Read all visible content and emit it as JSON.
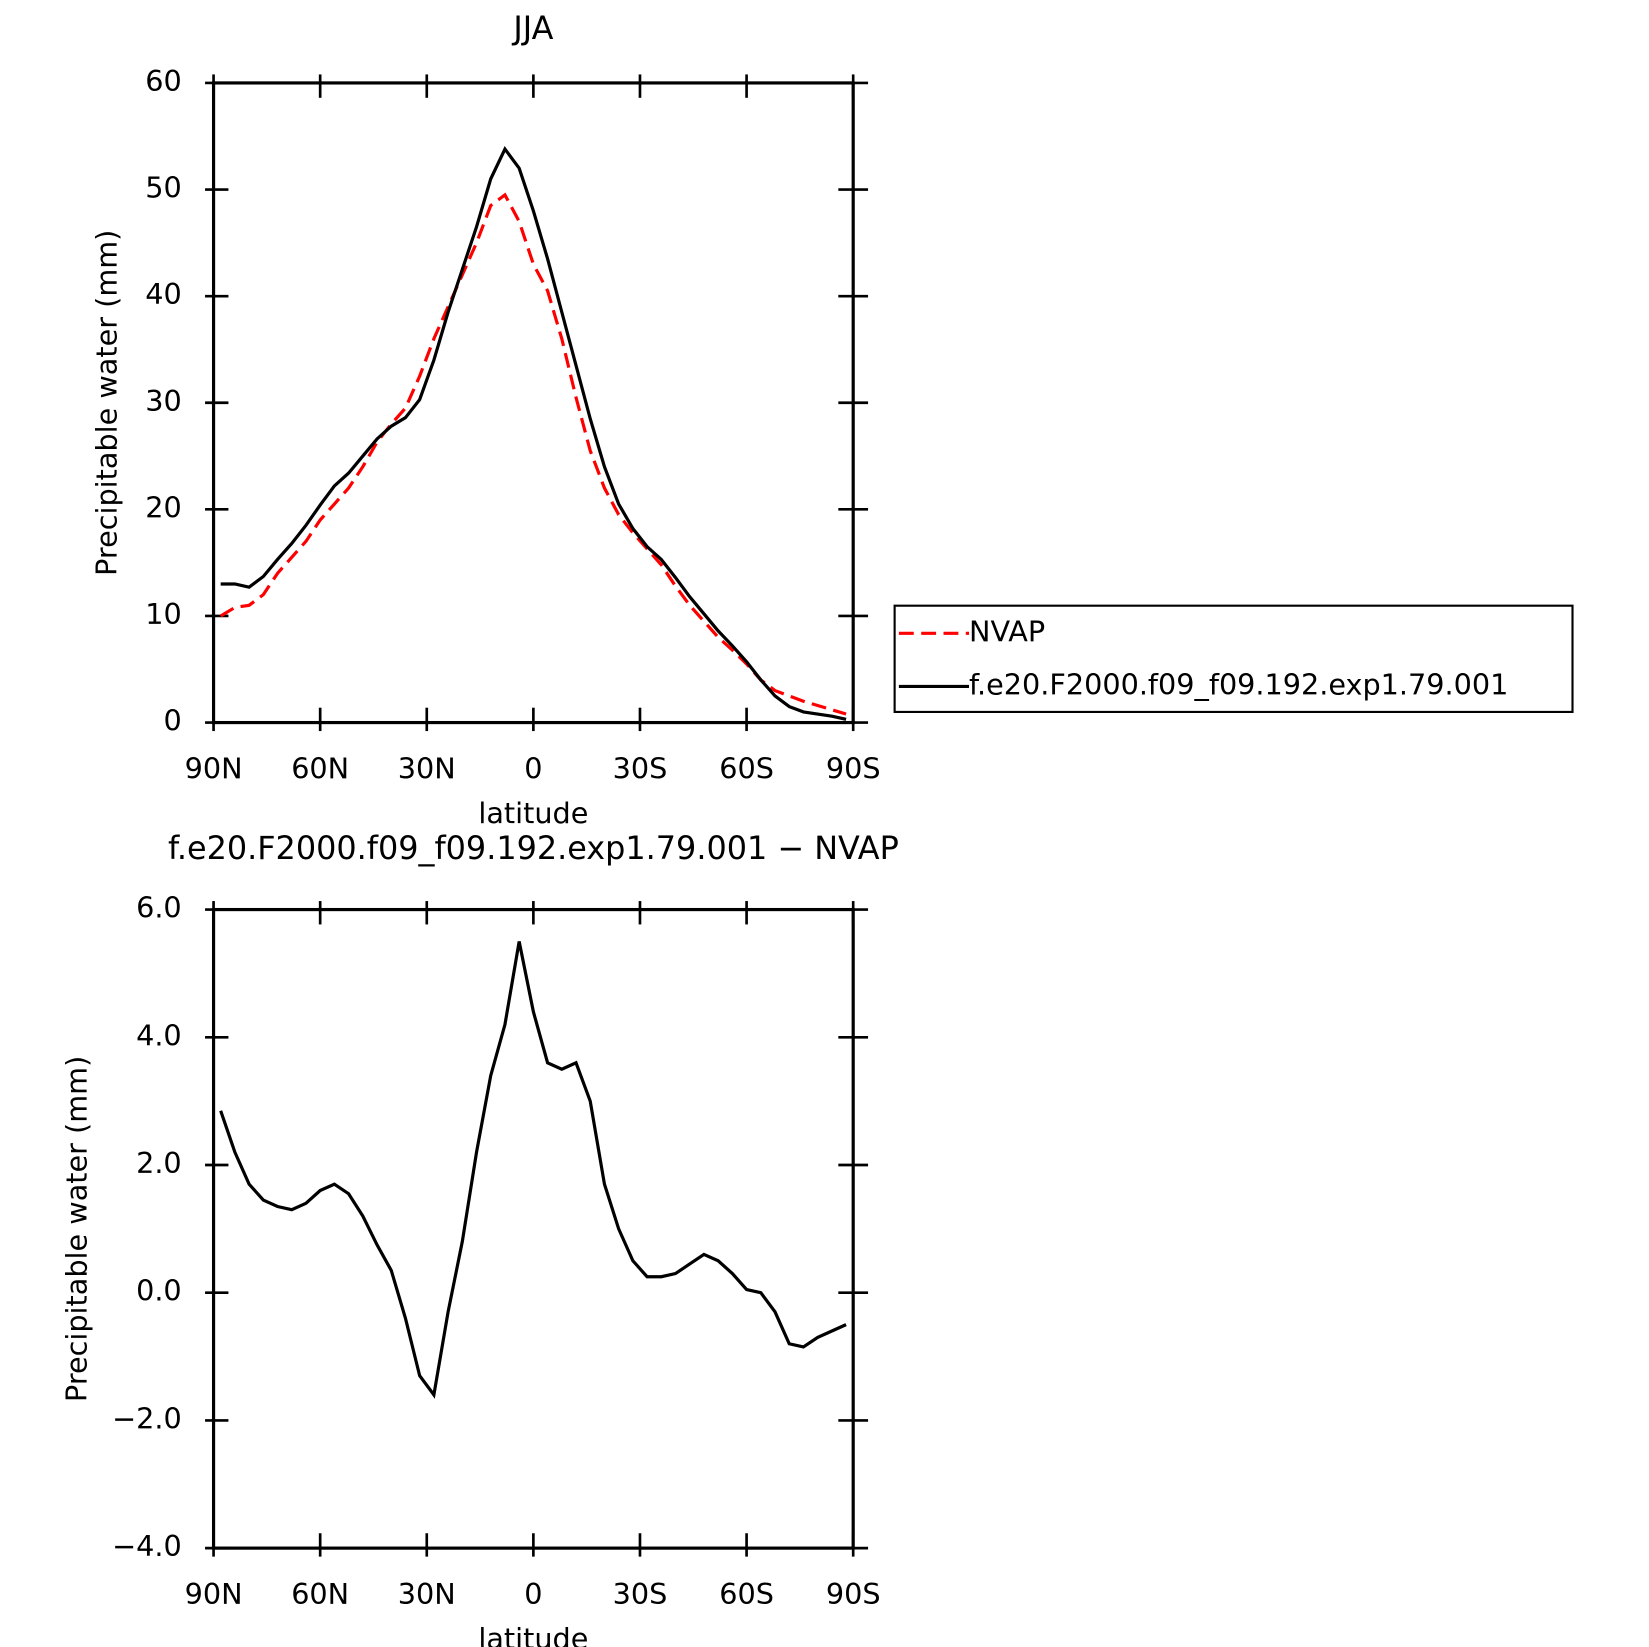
{
  "chart_data": [
    {
      "type": "line",
      "title": "JJA",
      "xlabel": "latitude",
      "ylabel": "Precipitable water (mm)",
      "x": [
        88,
        84,
        80,
        76,
        72,
        68,
        64,
        60,
        56,
        52,
        48,
        44,
        40,
        36,
        32,
        28,
        24,
        20,
        16,
        12,
        8,
        4,
        0,
        -4,
        -8,
        -12,
        -16,
        -20,
        -24,
        -28,
        -32,
        -36,
        -40,
        -44,
        -48,
        -52,
        -56,
        -60,
        -64,
        -68,
        -72,
        -76,
        -80,
        -84,
        -88
      ],
      "series": [
        {
          "name": "NVAP",
          "color": "#ff0000",
          "linestyle": "dashed",
          "values": [
            10.0,
            10.8,
            11.0,
            12.0,
            14.0,
            15.5,
            17.0,
            19.0,
            20.5,
            22.0,
            24.0,
            26.3,
            28.0,
            29.5,
            32.5,
            36.0,
            39.0,
            42.0,
            45.0,
            48.5,
            49.5,
            47.0,
            43.0,
            40.5,
            36.0,
            30.5,
            25.5,
            22.0,
            19.5,
            17.8,
            16.3,
            14.8,
            12.8,
            11.0,
            9.5,
            8.0,
            6.8,
            5.5,
            4.0,
            3.0,
            2.5,
            2.0,
            1.6,
            1.2,
            0.8
          ]
        },
        {
          "name": "f.e20.F2000.f09_f09.192.exp1.79.001",
          "color": "#000000",
          "linestyle": "solid",
          "values": [
            13.0,
            13.0,
            12.7,
            13.7,
            15.3,
            16.8,
            18.5,
            20.4,
            22.2,
            23.4,
            25.0,
            26.6,
            27.8,
            28.6,
            30.3,
            34.0,
            38.5,
            42.5,
            46.5,
            51.0,
            53.8,
            52.0,
            48.0,
            43.5,
            38.5,
            33.5,
            28.5,
            24.0,
            20.5,
            18.2,
            16.5,
            15.3,
            13.6,
            11.8,
            10.2,
            8.6,
            7.2,
            5.7,
            4.0,
            2.5,
            1.5,
            1.0,
            0.8,
            0.6,
            0.3
          ]
        }
      ],
      "xlim": [
        90,
        -90
      ],
      "xticks": [
        {
          "value": 90,
          "label": "90N"
        },
        {
          "value": 60,
          "label": "60N"
        },
        {
          "value": 30,
          "label": "30N"
        },
        0,
        {
          "value": -30,
          "label": "30S"
        },
        {
          "value": -60,
          "label": "60S"
        },
        {
          "value": -90,
          "label": "90S"
        }
      ],
      "ylim": [
        0,
        60
      ],
      "yticks": [
        0,
        10,
        20,
        30,
        40,
        50,
        60
      ],
      "legend": "right"
    },
    {
      "type": "line",
      "title": "f.e20.F2000.f09_f09.192.exp1.79.001 − NVAP",
      "xlabel": "latitude",
      "ylabel": "Precipitable water (mm)",
      "x": [
        88,
        84,
        80,
        76,
        72,
        68,
        64,
        60,
        56,
        52,
        48,
        44,
        40,
        36,
        32,
        28,
        24,
        20,
        16,
        12,
        8,
        4,
        0,
        -4,
        -8,
        -12,
        -16,
        -20,
        -24,
        -28,
        -32,
        -36,
        -40,
        -44,
        -48,
        -52,
        -56,
        -60,
        -64,
        -68,
        -72,
        -76,
        -80,
        -84,
        -88
      ],
      "series": [
        {
          "color": "#000000",
          "linestyle": "solid",
          "values": [
            2.85,
            2.2,
            1.7,
            1.45,
            1.35,
            1.3,
            1.4,
            1.6,
            1.7,
            1.55,
            1.2,
            0.75,
            0.35,
            -0.4,
            -1.3,
            -1.6,
            -0.3,
            0.8,
            2.2,
            3.4,
            4.2,
            5.5,
            4.4,
            3.6,
            3.5,
            3.6,
            3.0,
            1.7,
            1.0,
            0.5,
            0.25,
            0.25,
            0.3,
            0.45,
            0.6,
            0.5,
            0.3,
            0.05,
            0.0,
            -0.3,
            -0.8,
            -0.85,
            -0.7,
            -0.6,
            -0.5
          ]
        }
      ],
      "xlim": [
        90,
        -90
      ],
      "xticks": [
        {
          "value": 90,
          "label": "90N"
        },
        {
          "value": 60,
          "label": "60N"
        },
        {
          "value": 30,
          "label": "30N"
        },
        0,
        {
          "value": -30,
          "label": "30S"
        },
        {
          "value": -60,
          "label": "60S"
        },
        {
          "value": -90,
          "label": "90S"
        }
      ],
      "ylim": [
        -4,
        6
      ],
      "yticks": [
        {
          "value": 6,
          "label": "6.0"
        },
        {
          "value": 4,
          "label": "4.0"
        },
        {
          "value": 2,
          "label": "2.0"
        },
        {
          "value": 0,
          "label": "0.0"
        },
        {
          "value": -2,
          "label": "−2.0"
        },
        {
          "value": -4,
          "label": "−4.0"
        }
      ]
    }
  ]
}
